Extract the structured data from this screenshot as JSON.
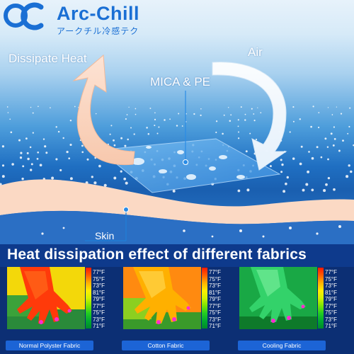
{
  "brand": {
    "name": "Arc-Chill",
    "subtitle": "アークチル冷感テク",
    "logo": "ac-logo"
  },
  "illustration": {
    "dissipate_label": "Dissipate Heat",
    "air_label": "Air",
    "material_label": "MICA & PE",
    "skin_label": "Skin"
  },
  "heading": "Heat dissipation effect of different fabrics",
  "panels": [
    {
      "caption": "Normal Polyster Fabric",
      "temps": [
        "77°F",
        "75°F",
        "73°F",
        "81°F",
        "79°F",
        "77°F",
        "75°F",
        "73°F",
        "71°F"
      ],
      "palette": {
        "hand": "#ff3a0a",
        "back": "#f3d80a"
      }
    },
    {
      "caption": "Cotton Fabric",
      "temps": [
        "77°F",
        "75°F",
        "73°F",
        "81°F",
        "79°F",
        "77°F",
        "75°F",
        "73°F",
        "71°F"
      ],
      "palette": {
        "hand": "#ffb000",
        "back": "#ff8a10"
      }
    },
    {
      "caption": "Cooling Fabric",
      "temps": [
        "77°F",
        "75°F",
        "73°F",
        "81°F",
        "79°F",
        "77°F",
        "75°F",
        "73°F",
        "71°F"
      ],
      "palette": {
        "hand": "#33d26a",
        "back": "#19a845"
      }
    }
  ],
  "colors": {
    "brand_blue": "#1a6fd4",
    "heading_bg": "#0e3a8c",
    "skin": "#fbd9c4",
    "caption_bg": "#1c64d6"
  }
}
